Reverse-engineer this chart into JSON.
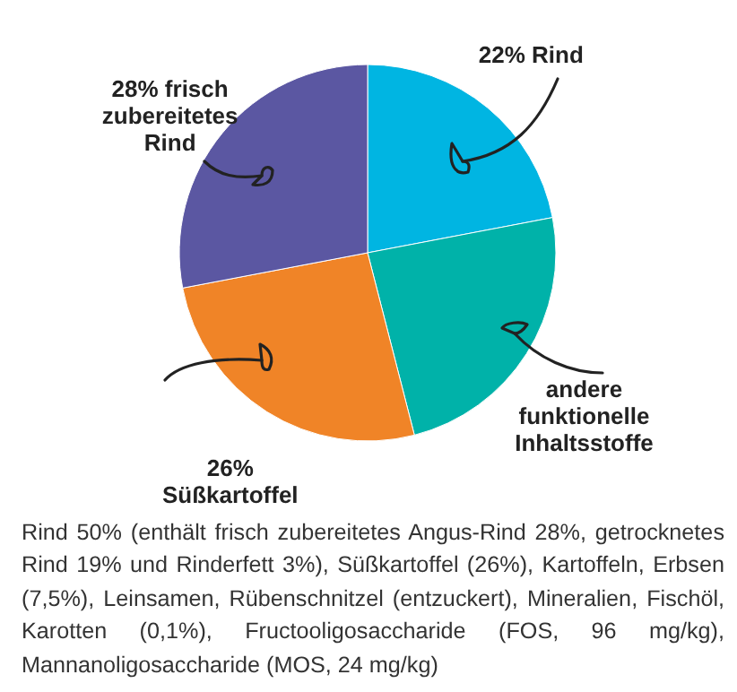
{
  "chart_data": {
    "type": "pie",
    "categories": [
      "22% Rind",
      "andere\nfunktionelle\nInhaltsstoffe",
      "26%\nSüßkartoffel",
      "28% frisch\nzubereitetes\nRind"
    ],
    "values": [
      22,
      24,
      26,
      28
    ],
    "colors": [
      "#00b5e2",
      "#00b2a9",
      "#f08427",
      "#5b57a2"
    ],
    "annotations": [
      "Rind 50% (enthält frisch zubereitetes Angus-Rind 28%, getrocknetes Rind 19% und Rinderfett 3%), Süßkartoffel (26%), Kartoffeln, Erbsen (7,5%), Leinsamen, Rübenschnitzel (entzuckert), Mineralien, Fischöl, Karotten (0,1%), Fructooligosaccharide (FOS, 96 mg/kg), Mannanoligosaccharide (MOS, 24 mg/kg)"
    ]
  }
}
